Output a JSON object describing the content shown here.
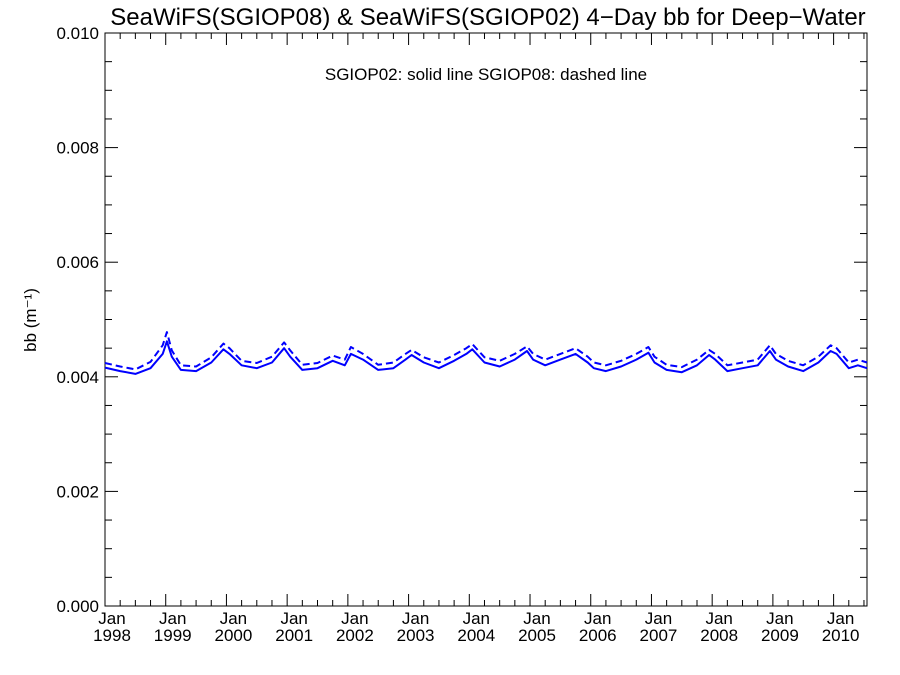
{
  "chart_data": {
    "type": "line",
    "title": "SeaWiFS(SGIOP08) & SeaWiFS(SGIOP02) 4−Day bb for Deep−Water",
    "annotation": "SGIOP02: solid line   SGIOP08: dashed line",
    "ylabel": "bb (m⁻¹)",
    "xlabel": "",
    "ylim": [
      0.0,
      0.01
    ],
    "xlim": [
      1998.0,
      2010.55
    ],
    "y_ticks": [
      "0.000",
      "0.002",
      "0.004",
      "0.006",
      "0.008",
      "0.010"
    ],
    "x_ticks": [
      {
        "month": "Jan",
        "year": "1998"
      },
      {
        "month": "Jan",
        "year": "1999"
      },
      {
        "month": "Jan",
        "year": "2000"
      },
      {
        "month": "Jan",
        "year": "2001"
      },
      {
        "month": "Jan",
        "year": "2002"
      },
      {
        "month": "Jan",
        "year": "2003"
      },
      {
        "month": "Jan",
        "year": "2004"
      },
      {
        "month": "Jan",
        "year": "2005"
      },
      {
        "month": "Jan",
        "year": "2006"
      },
      {
        "month": "Jan",
        "year": "2007"
      },
      {
        "month": "Jan",
        "year": "2008"
      },
      {
        "month": "Jan",
        "year": "2009"
      },
      {
        "month": "Jan",
        "year": "2010"
      }
    ],
    "line_color": "#0000ff",
    "grid": false,
    "series": [
      {
        "style": "solid",
        "x": [
          1998.0,
          1998.25,
          1998.5,
          1998.75,
          1998.95,
          1999.02,
          1999.1,
          1999.25,
          1999.5,
          1999.75,
          1999.95,
          2000.05,
          2000.25,
          2000.5,
          2000.75,
          2000.95,
          2001.05,
          2001.25,
          2001.5,
          2001.75,
          2001.95,
          2002.05,
          2002.25,
          2002.5,
          2002.75,
          2002.95,
          2003.05,
          2003.25,
          2003.5,
          2003.75,
          2003.95,
          2004.05,
          2004.25,
          2004.5,
          2004.75,
          2004.95,
          2005.05,
          2005.25,
          2005.5,
          2005.75,
          2005.95,
          2006.05,
          2006.25,
          2006.5,
          2006.75,
          2006.95,
          2007.05,
          2007.25,
          2007.5,
          2007.75,
          2007.95,
          2008.05,
          2008.25,
          2008.5,
          2008.75,
          2008.95,
          2009.05,
          2009.25,
          2009.5,
          2009.75,
          2009.95,
          2010.05,
          2010.25,
          2010.4,
          2010.55
        ],
        "y": [
          0.00416,
          0.0041,
          0.00405,
          0.00415,
          0.0044,
          0.00462,
          0.00435,
          0.00412,
          0.0041,
          0.00425,
          0.00448,
          0.0044,
          0.0042,
          0.00415,
          0.00425,
          0.0045,
          0.00435,
          0.00412,
          0.00415,
          0.00428,
          0.0042,
          0.0044,
          0.0043,
          0.00412,
          0.00415,
          0.0043,
          0.00438,
          0.00425,
          0.00415,
          0.00428,
          0.0044,
          0.00448,
          0.00425,
          0.00418,
          0.0043,
          0.00445,
          0.0043,
          0.0042,
          0.0043,
          0.0044,
          0.00425,
          0.00415,
          0.0041,
          0.00418,
          0.0043,
          0.00442,
          0.00425,
          0.00412,
          0.00408,
          0.0042,
          0.00438,
          0.0043,
          0.0041,
          0.00415,
          0.0042,
          0.00445,
          0.0043,
          0.00418,
          0.0041,
          0.00425,
          0.00445,
          0.0044,
          0.00415,
          0.0042,
          0.00415
        ]
      },
      {
        "style": "dashed",
        "x": [
          1998.0,
          1998.25,
          1998.5,
          1998.75,
          1998.95,
          1999.02,
          1999.1,
          1999.25,
          1999.5,
          1999.75,
          1999.95,
          2000.05,
          2000.25,
          2000.5,
          2000.75,
          2000.95,
          2001.05,
          2001.25,
          2001.5,
          2001.75,
          2001.95,
          2002.05,
          2002.25,
          2002.5,
          2002.75,
          2002.95,
          2003.05,
          2003.25,
          2003.5,
          2003.75,
          2003.95,
          2004.05,
          2004.25,
          2004.5,
          2004.75,
          2004.95,
          2005.05,
          2005.25,
          2005.5,
          2005.75,
          2005.95,
          2006.05,
          2006.25,
          2006.5,
          2006.75,
          2006.95,
          2007.05,
          2007.25,
          2007.5,
          2007.75,
          2007.95,
          2008.05,
          2008.25,
          2008.5,
          2008.75,
          2008.95,
          2009.05,
          2009.25,
          2009.5,
          2009.75,
          2009.95,
          2010.05,
          2010.25,
          2010.4,
          2010.55
        ],
        "y": [
          0.00424,
          0.00418,
          0.00413,
          0.00426,
          0.00455,
          0.00478,
          0.00446,
          0.0042,
          0.00418,
          0.00434,
          0.00458,
          0.0045,
          0.00428,
          0.00424,
          0.00435,
          0.0046,
          0.00446,
          0.00421,
          0.00424,
          0.00437,
          0.0043,
          0.00452,
          0.0044,
          0.00421,
          0.00425,
          0.0044,
          0.00447,
          0.00434,
          0.00425,
          0.00438,
          0.0045,
          0.00457,
          0.00434,
          0.00428,
          0.0044,
          0.00453,
          0.0044,
          0.0043,
          0.0044,
          0.0045,
          0.00435,
          0.00425,
          0.0042,
          0.00428,
          0.0044,
          0.00452,
          0.00435,
          0.00421,
          0.00417,
          0.0043,
          0.00447,
          0.0044,
          0.0042,
          0.00425,
          0.0043,
          0.00455,
          0.0044,
          0.00428,
          0.0042,
          0.00435,
          0.00455,
          0.0045,
          0.00425,
          0.0043,
          0.00425
        ]
      }
    ]
  }
}
